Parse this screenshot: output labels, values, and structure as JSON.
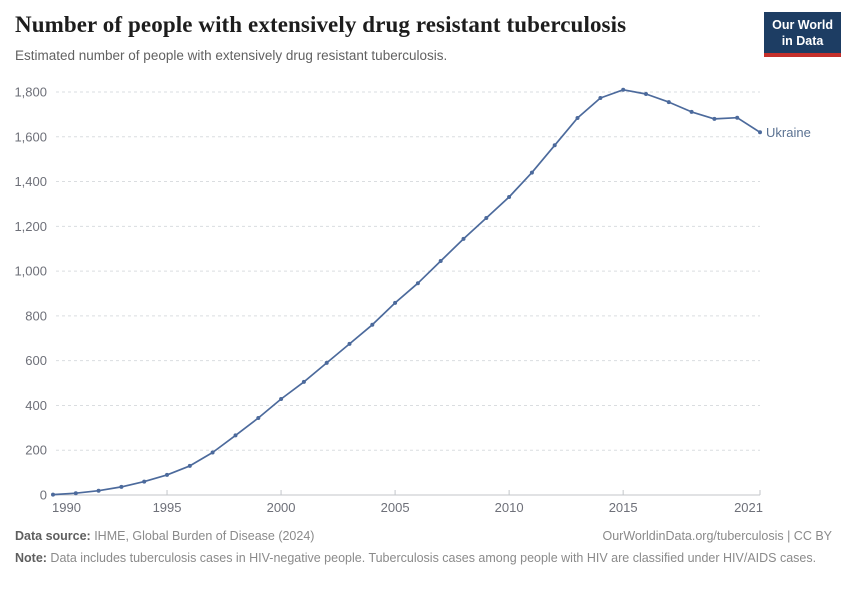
{
  "header": {
    "title": "Number of people with extensively drug resistant tuberculosis",
    "subtitle": "Estimated number of people with extensively drug resistant tuberculosis.",
    "logo": {
      "line1": "Our World",
      "line2": "in Data"
    }
  },
  "chart_data": {
    "type": "line",
    "title": "Number of people with extensively drug resistant tuberculosis",
    "xlabel": "",
    "ylabel": "",
    "x": [
      1990,
      1991,
      1992,
      1993,
      1994,
      1995,
      1996,
      1997,
      1998,
      1999,
      2000,
      2001,
      2002,
      2003,
      2004,
      2005,
      2006,
      2007,
      2008,
      2009,
      2010,
      2011,
      2012,
      2013,
      2014,
      2015,
      2016,
      2017,
      2018,
      2019,
      2020,
      2021
    ],
    "series": [
      {
        "name": "Ukraine",
        "color": "#4C6A9C",
        "values": [
          2,
          8,
          19,
          36,
          60,
          90,
          130,
          190,
          266,
          344,
          429,
          505,
          590,
          675,
          760,
          858,
          946,
          1045,
          1144,
          1237,
          1331,
          1440,
          1562,
          1684,
          1773,
          1810,
          1791,
          1755,
          1711,
          1680,
          1685,
          1620
        ]
      }
    ],
    "xlim": [
      1990,
      2021
    ],
    "ylim": [
      0,
      1800
    ],
    "yticks": [
      {
        "value": 0,
        "label": "0"
      },
      {
        "value": 200,
        "label": "200"
      },
      {
        "value": 400,
        "label": "400"
      },
      {
        "value": 600,
        "label": "600"
      },
      {
        "value": 800,
        "label": "800"
      },
      {
        "value": 1000,
        "label": "1,000"
      },
      {
        "value": 1200,
        "label": "1,200"
      },
      {
        "value": 1400,
        "label": "1,400"
      },
      {
        "value": 1600,
        "label": "1,600"
      },
      {
        "value": 1800,
        "label": "1,800"
      }
    ],
    "xticks": [
      {
        "value": 1990,
        "label": "1990"
      },
      {
        "value": 1995,
        "label": "1995"
      },
      {
        "value": 2000,
        "label": "2000"
      },
      {
        "value": 2005,
        "label": "2005"
      },
      {
        "value": 2010,
        "label": "2010"
      },
      {
        "value": 2015,
        "label": "2015"
      },
      {
        "value": 2021,
        "label": "2021"
      }
    ],
    "grid": "horizontal-dashed",
    "legend": "line-end-label"
  },
  "footer": {
    "sources_label": "Data source:",
    "sources_text": " IHME, Global Burden of Disease (2024)",
    "citation": "OurWorldinData.org/tuberculosis | CC BY",
    "note_label": "Note:",
    "note_text": " Data includes tuberculosis cases in HIV-negative people. Tuberculosis cases among people with HIV are classified under HIV/AIDS cases."
  },
  "colors": {
    "line": "#4C6A9C",
    "series_label": "#5B7292",
    "grid": "#DADDE0",
    "axis": "#C3C6CA",
    "tick_text": "#6E7079",
    "logo_bg": "#1D3D63",
    "logo_accent": "#C5302B"
  }
}
